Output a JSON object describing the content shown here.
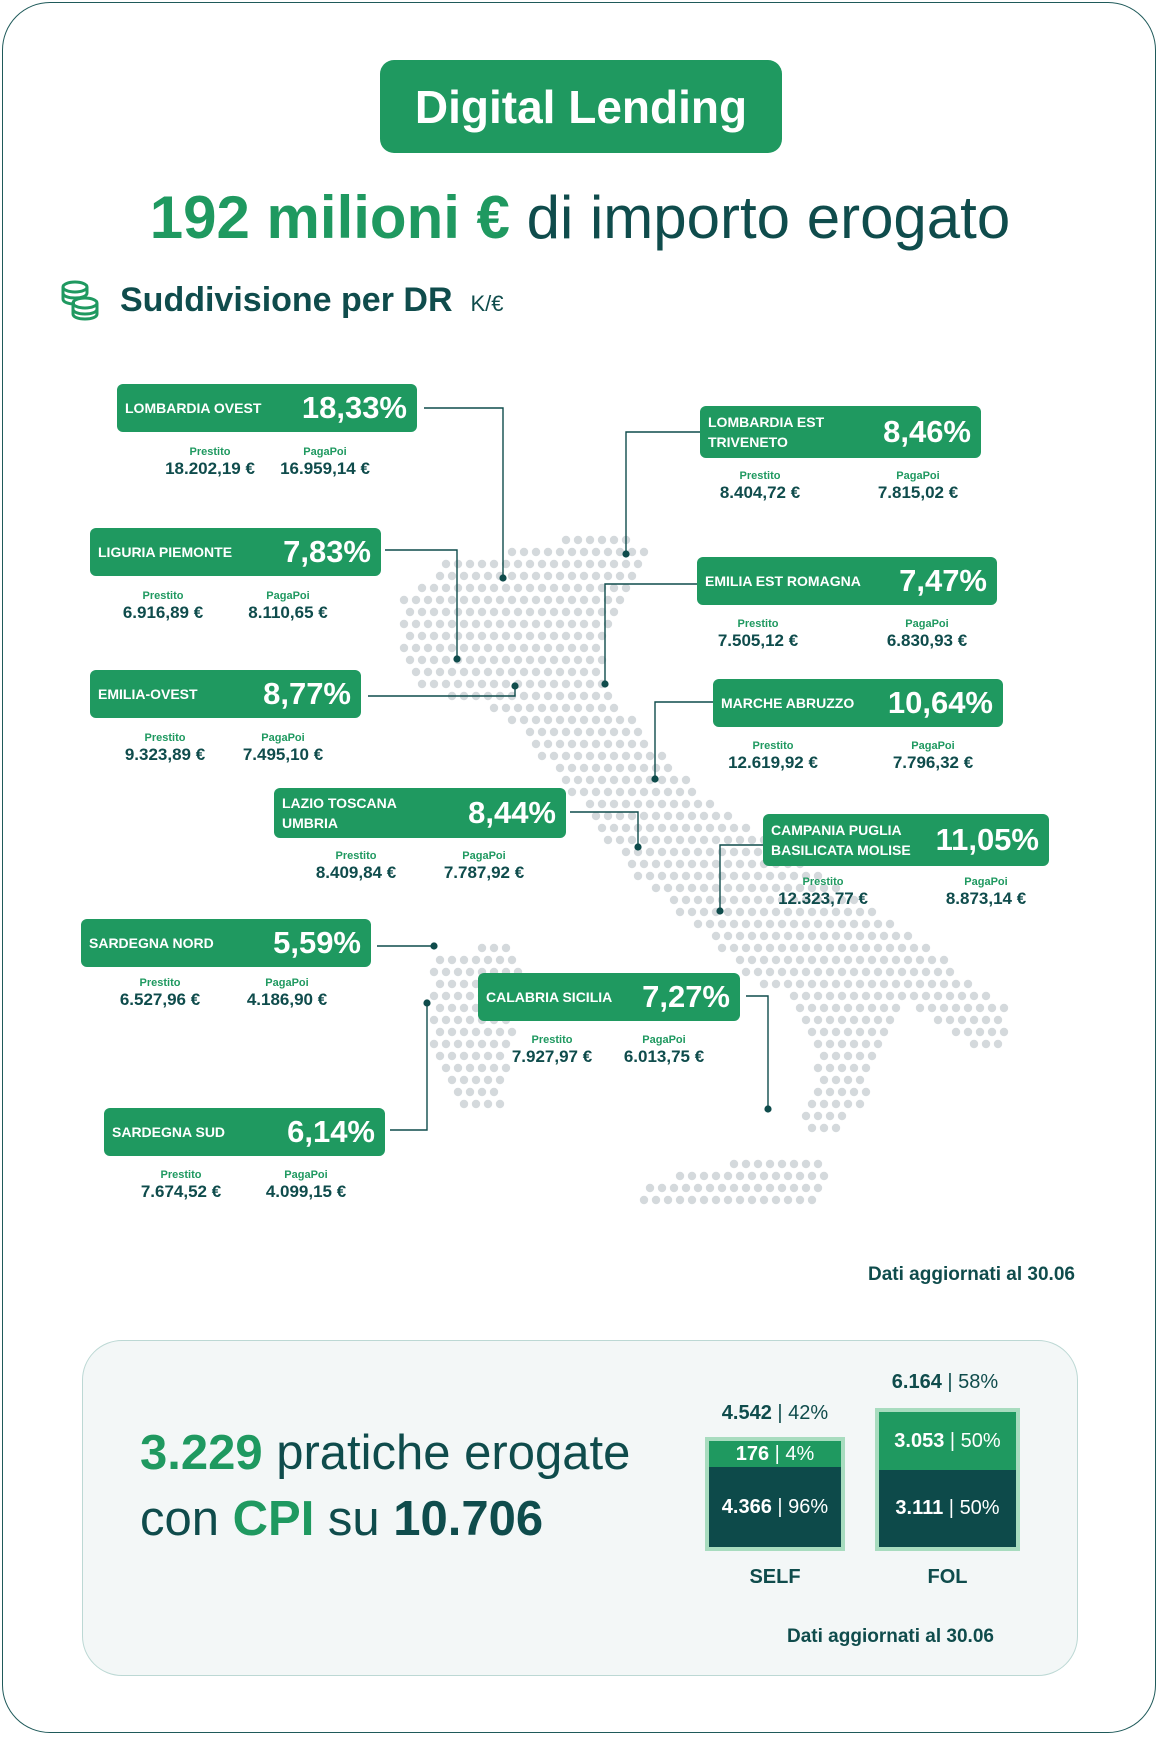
{
  "header": {
    "title": "Digital Lending",
    "headline_accent": "192 milioni €",
    "headline_rest": " di importo erogato"
  },
  "section": {
    "icon": "coins-icon",
    "label": "Suddivisione per DR",
    "unit": "K/€"
  },
  "regions": [
    {
      "id": "lombardia-ovest",
      "name": "LOMBARDIA OVEST",
      "pct": "18,33%",
      "prestito_label": "Prestito",
      "prestito": "18.202,19 €",
      "pagapoi_label": "PagaPoi",
      "pagapoi": "16.959,14 €"
    },
    {
      "id": "lombardia-est",
      "name": "LOMBARDIA EST TRIVENETO",
      "pct": "8,46%",
      "prestito_label": "Prestito",
      "prestito": "8.404,72 €",
      "pagapoi_label": "PagaPoi",
      "pagapoi": "7.815,02 €"
    },
    {
      "id": "liguria-piemonte",
      "name": "LIGURIA PIEMONTE",
      "pct": "7,83%",
      "prestito_label": "Prestito",
      "prestito": "6.916,89 €",
      "pagapoi_label": "PagaPoi",
      "pagapoi": "8.110,65 €"
    },
    {
      "id": "emilia-est",
      "name": "EMILIA EST ROMAGNA",
      "pct": "7,47%",
      "prestito_label": "Prestito",
      "prestito": "7.505,12 €",
      "pagapoi_label": "PagaPoi",
      "pagapoi": "6.830,93 €"
    },
    {
      "id": "emilia-ovest",
      "name": "EMILIA-OVEST",
      "pct": "8,77%",
      "prestito_label": "Prestito",
      "prestito": "9.323,89 €",
      "pagapoi_label": "PagaPoi",
      "pagapoi": "7.495,10 €"
    },
    {
      "id": "marche-abruzzo",
      "name": "MARCHE ABRUZZO",
      "pct": "10,64%",
      "prestito_label": "Prestito",
      "prestito": "12.619,92 €",
      "pagapoi_label": "PagaPoi",
      "pagapoi": "7.796,32 €"
    },
    {
      "id": "lazio",
      "name": "LAZIO TOSCANA UMBRIA",
      "pct": "8,44%",
      "prestito_label": "Prestito",
      "prestito": "8.409,84 €",
      "pagapoi_label": "PagaPoi",
      "pagapoi": "7.787,92 €"
    },
    {
      "id": "campania",
      "name": "CAMPANIA PUGLIA BASILICATA MOLISE",
      "pct": "11,05%",
      "prestito_label": "Prestito",
      "prestito": "12.323,77 €",
      "pagapoi_label": "PagaPoi",
      "pagapoi": "8.873,14 €"
    },
    {
      "id": "sardegna-nord",
      "name": "SARDEGNA NORD",
      "pct": "5,59%",
      "prestito_label": "Prestito",
      "prestito": "6.527,96 €",
      "pagapoi_label": "PagaPoi",
      "pagapoi": "4.186,90 €"
    },
    {
      "id": "calabria",
      "name": "CALABRIA SICILIA",
      "pct": "7,27%",
      "prestito_label": "Prestito",
      "prestito": "7.927,97 €",
      "pagapoi_label": "PagaPoi",
      "pagapoi": "6.013,75 €"
    },
    {
      "id": "sardegna-sud",
      "name": "SARDEGNA SUD",
      "pct": "6,14%",
      "prestito_label": "Prestito",
      "prestito": "7.674,52 €",
      "pagapoi_label": "PagaPoi",
      "pagapoi": "4.099,15 €"
    }
  ],
  "updated_1": "Dati aggiornati al 30.06",
  "summary": {
    "count": "3.229",
    "text1": " pratiche erogate",
    "text2": "con ",
    "cpi": "CPI",
    "text3": " su ",
    "total": "10.706",
    "updated": "Dati aggiornati al 30.06"
  },
  "bars": {
    "self": {
      "label": "SELF",
      "total_value": "4.542",
      "total_pct": "42%",
      "top_value": "176",
      "top_pct": "4%",
      "bottom_value": "4.366",
      "bottom_pct": "96%"
    },
    "fol": {
      "label": "FOL",
      "total_value": "6.164",
      "total_pct": "58%",
      "top_value": "3.053",
      "top_pct": "50%",
      "bottom_value": "3.111",
      "bottom_pct": "50%"
    }
  },
  "colors": {
    "green": "#1f9960",
    "dark": "#0f4c4c",
    "dark_teal": "#0d4a4a",
    "dots": "#d4d9dc"
  }
}
